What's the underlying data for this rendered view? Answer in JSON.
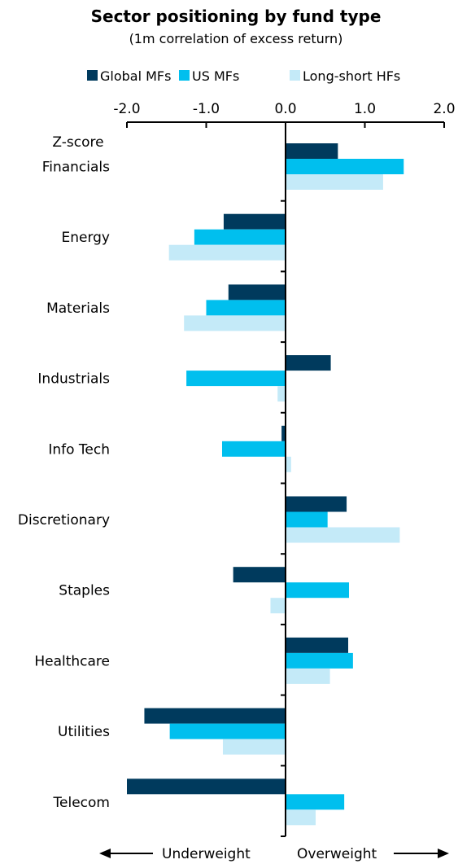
{
  "chart_data": {
    "type": "bar",
    "orientation": "horizontal",
    "title": "Sector positioning by fund type",
    "subtitle": "(1m correlation of excess return)",
    "xlabel": "Z-score",
    "xlim": [
      -2.0,
      2.0
    ],
    "x_ticks": [
      "-2.0",
      "-1.0",
      "0.0",
      "1.0",
      "2.0"
    ],
    "x_tick_values": [
      -2.0,
      -1.0,
      0.0,
      1.0,
      2.0
    ],
    "axis_position": "top",
    "grid": false,
    "legend_position": "top",
    "categories": [
      "Financials",
      "Energy",
      "Materials",
      "Industrials",
      "Info Tech",
      "Discretionary",
      "Staples",
      "Healthcare",
      "Utilities",
      "Telecom"
    ],
    "series": [
      {
        "name": "Global MFs",
        "color": "#003a5d",
        "values": [
          0.66,
          -0.78,
          -0.72,
          0.57,
          -0.05,
          0.77,
          -0.66,
          0.79,
          -1.78,
          -2.0
        ]
      },
      {
        "name": "US MFs",
        "color": "#00bfee",
        "values": [
          1.49,
          -1.15,
          -1.0,
          -1.25,
          -0.8,
          0.53,
          0.8,
          0.85,
          -1.46,
          0.74
        ]
      },
      {
        "name": "Long-short HFs",
        "color": "#c4eaf8",
        "values": [
          1.23,
          -1.47,
          -1.28,
          -0.1,
          0.07,
          1.44,
          -0.19,
          0.56,
          -0.79,
          0.38
        ]
      }
    ],
    "direction_labels": {
      "left": "Underweight",
      "right": "Overweight"
    }
  }
}
